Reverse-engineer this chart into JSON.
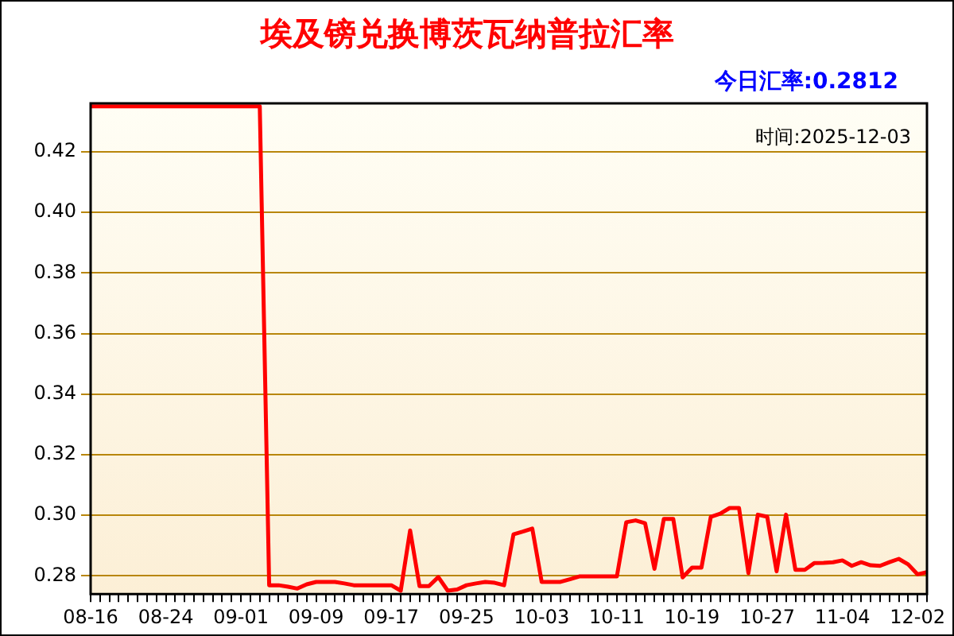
{
  "chart_data": {
    "type": "line",
    "title": "埃及镑兑换博茨瓦纳普拉汇率",
    "categories": [
      "08-16",
      null,
      null,
      null,
      null,
      null,
      null,
      null,
      "08-24",
      null,
      null,
      null,
      null,
      null,
      null,
      null,
      "09-01",
      null,
      null,
      null,
      null,
      null,
      null,
      null,
      "09-09",
      null,
      null,
      null,
      null,
      null,
      null,
      null,
      "09-17",
      null,
      null,
      null,
      null,
      null,
      null,
      null,
      "09-25",
      null,
      null,
      null,
      null,
      null,
      null,
      null,
      "10-03",
      null,
      null,
      null,
      null,
      null,
      null,
      null,
      "10-11",
      null,
      null,
      null,
      null,
      null,
      null,
      null,
      "10-19",
      null,
      null,
      null,
      null,
      null,
      null,
      null,
      "10-27",
      null,
      null,
      null,
      null,
      null,
      null,
      null,
      "11-04",
      null,
      null,
      null,
      null,
      null,
      null,
      null,
      "12-02",
      null
    ],
    "series": [
      {
        "color": "#ff0000",
        "values": [
          0.435,
          0.435,
          0.435,
          0.435,
          0.435,
          0.435,
          0.435,
          0.435,
          0.435,
          0.435,
          0.435,
          0.435,
          0.435,
          0.435,
          0.435,
          0.435,
          0.435,
          0.435,
          0.435,
          0.2769,
          0.2769,
          0.2764,
          0.2758,
          0.2772,
          0.278,
          0.278,
          0.278,
          0.2775,
          0.2769,
          0.2769,
          0.2769,
          0.2769,
          0.2769,
          0.2751,
          0.295,
          0.2766,
          0.2766,
          0.2796,
          0.2751,
          0.2755,
          0.2769,
          0.2775,
          0.278,
          0.2777,
          0.2769,
          0.2937,
          0.2946,
          0.2956,
          0.278,
          0.278,
          0.278,
          0.2789,
          0.2798,
          0.2798,
          0.2798,
          0.2798,
          0.2798,
          0.2977,
          0.2983,
          0.2974,
          0.2823,
          0.2988,
          0.2988,
          0.2795,
          0.2827,
          0.2827,
          0.2995,
          0.3005,
          0.3024,
          0.3024,
          0.2809,
          0.3002,
          0.2995,
          0.2815,
          0.3002,
          0.282,
          0.282,
          0.2842,
          0.2843,
          0.2845,
          0.2851,
          0.2833,
          0.2845,
          0.2835,
          0.2833,
          0.2845,
          0.2856,
          0.2838,
          0.2805,
          0.2812
        ]
      }
    ],
    "ylim": [
      0.274,
      0.436
    ],
    "yticks": [
      0.28,
      {
        "value": 0.3,
        "label": "0.30"
      },
      0.32,
      0.34,
      0.36,
      0.38,
      {
        "value": 0.4,
        "label": "0.40"
      },
      0.42
    ],
    "grid": "y",
    "legend": false,
    "marker": "none",
    "line_style": "solid",
    "annotations": [
      "今日汇率:0.2812",
      "时间:2025-12-03"
    ]
  }
}
